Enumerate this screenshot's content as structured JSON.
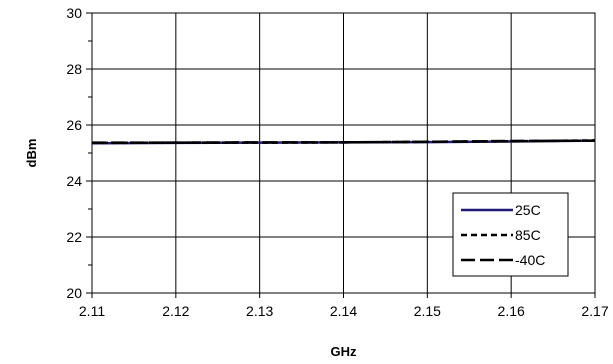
{
  "chart_data": {
    "type": "line",
    "xlabel": "GHz",
    "ylabel": "dBm",
    "xlim": [
      2.11,
      2.17
    ],
    "ylim": [
      20,
      30
    ],
    "x_ticks": [
      "2.11",
      "2.12",
      "2.13",
      "2.14",
      "2.15",
      "2.16",
      "2.17"
    ],
    "y_ticks": [
      "20",
      "22",
      "24",
      "26",
      "28",
      "30"
    ],
    "grid": true,
    "legend_position": "bottom-right",
    "x": [
      2.11,
      2.12,
      2.13,
      2.14,
      2.15,
      2.16,
      2.17
    ],
    "series": [
      {
        "name": "25C",
        "values": [
          25.35,
          25.36,
          25.37,
          25.38,
          25.39,
          25.41,
          25.44
        ],
        "color": "#1f1a7a",
        "style": "solid"
      },
      {
        "name": "85C",
        "values": [
          25.36,
          25.37,
          25.37,
          25.38,
          25.4,
          25.42,
          25.45
        ],
        "color": "#000000",
        "style": "dotted"
      },
      {
        "name": "-40C",
        "values": [
          25.37,
          25.37,
          25.38,
          25.38,
          25.4,
          25.43,
          25.44
        ],
        "color": "#000000",
        "style": "dashed"
      }
    ]
  }
}
